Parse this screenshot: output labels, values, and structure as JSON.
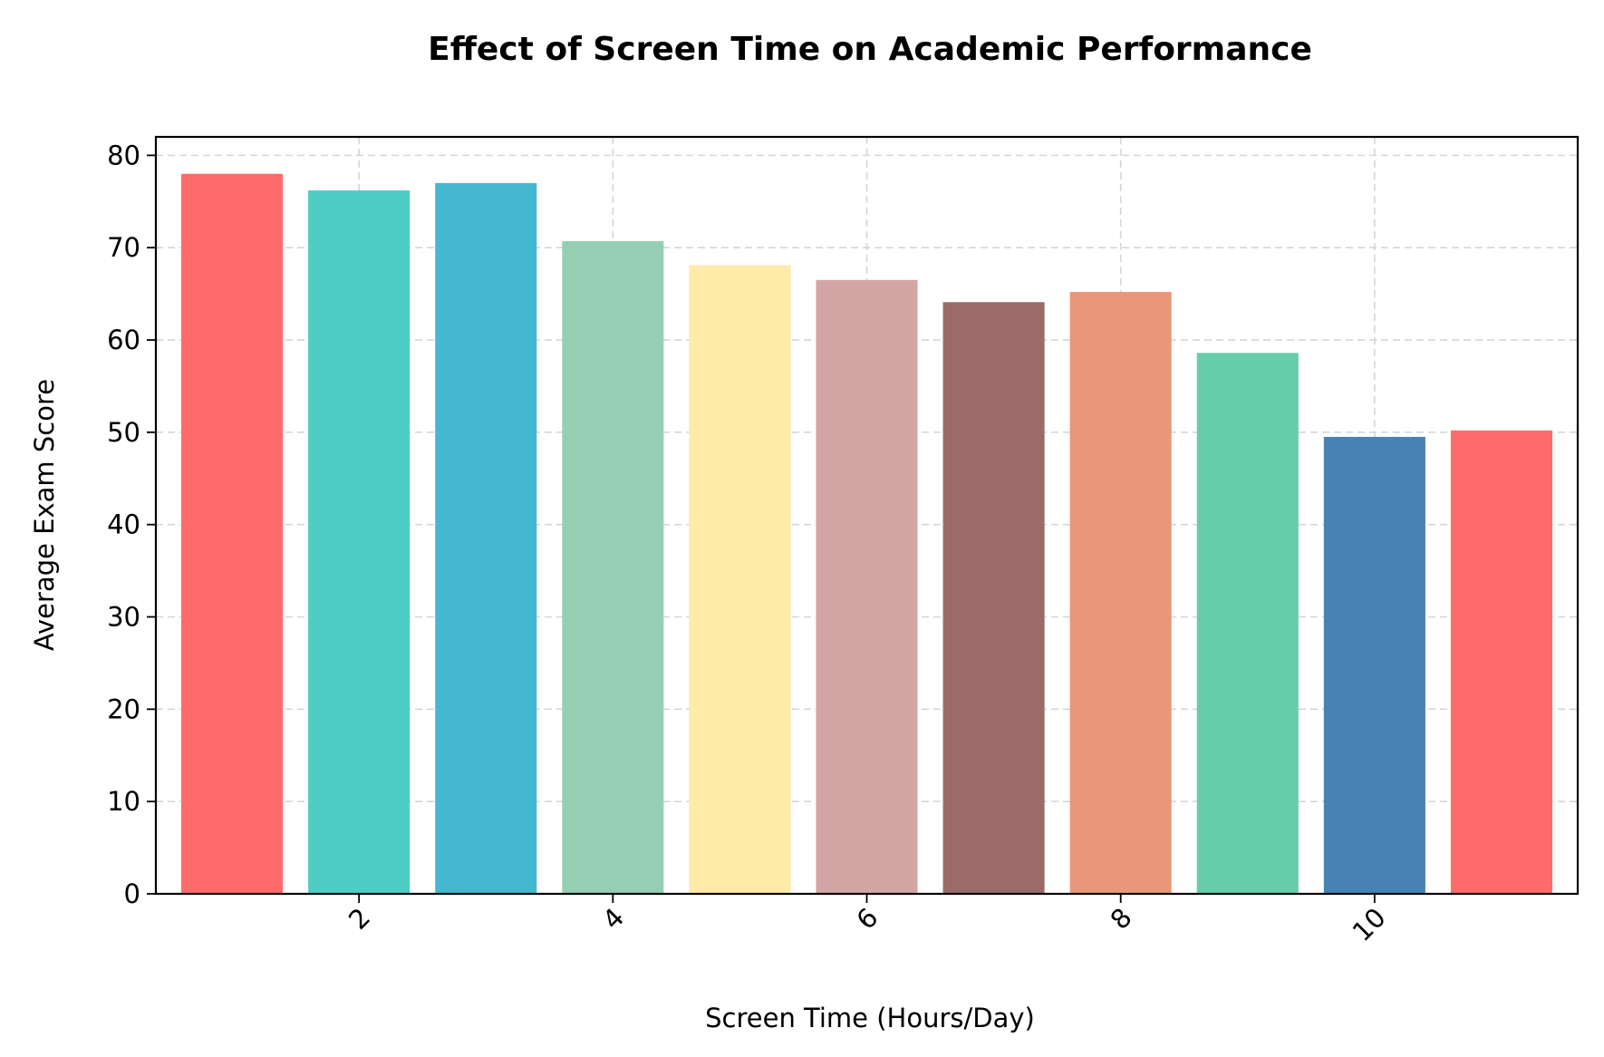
{
  "chart_data": {
    "type": "bar",
    "title": "Effect of Screen Time on Academic Performance",
    "xlabel": "Screen Time (Hours/Day)",
    "ylabel": "Average Exam Score",
    "x": [
      1,
      2,
      3,
      4,
      5,
      6,
      7,
      8,
      9,
      10,
      11
    ],
    "values": [
      78,
      76.2,
      77,
      70.7,
      68.1,
      66.5,
      64.1,
      65.2,
      58.6,
      49.5,
      50.2
    ],
    "bar_colors": [
      "#FF6B6B",
      "#4ECDC4",
      "#45B7D1",
      "#96CEB4",
      "#FFEAA7",
      "#D4A5A5",
      "#9B6B6B",
      "#E9967A",
      "#66CDAA",
      "#4682B4",
      "#FF6B6B"
    ],
    "xlim": [
      0.4,
      11.6
    ],
    "ylim": [
      0,
      82
    ],
    "xticks": [
      2,
      4,
      6,
      8,
      10
    ],
    "yticks": [
      0,
      10,
      20,
      30,
      40,
      50,
      60,
      70,
      80
    ],
    "xtick_rotation": -45,
    "grid": true,
    "legend": "none"
  }
}
